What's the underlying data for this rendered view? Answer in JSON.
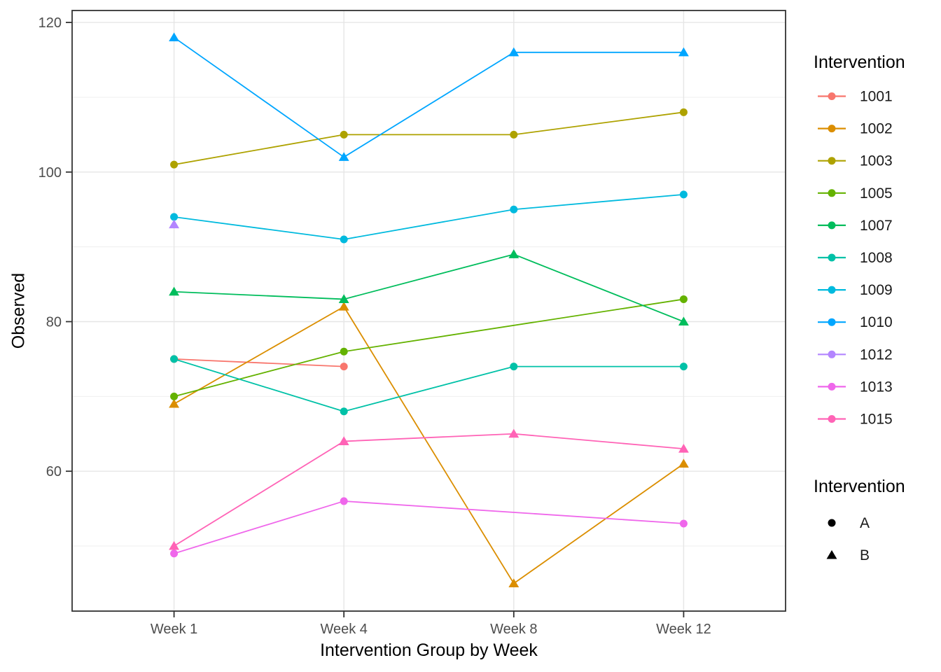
{
  "chart_data": {
    "type": "line",
    "title": "",
    "xlabel": "Intervention Group by Week",
    "ylabel": "Observed",
    "categories": [
      "Week 1",
      "Week 4",
      "Week 8",
      "Week 12"
    ],
    "ylim": [
      41.3,
      121.6
    ],
    "y_major_ticks": [
      60,
      80,
      100,
      120
    ],
    "y_minor_ticks": [
      50,
      70,
      90,
      110
    ],
    "grid": true,
    "legend_position": "right",
    "legend_color_title": "Intervention",
    "legend_shape_title": "Intervention",
    "shape_legend": [
      {
        "label": "A",
        "shape": "circle"
      },
      {
        "label": "B",
        "shape": "triangle"
      }
    ],
    "series": [
      {
        "name": "1001",
        "color": "#F8766D",
        "shape": "circle",
        "values": [
          75,
          74,
          null,
          null
        ]
      },
      {
        "name": "1002",
        "color": "#DB8E00",
        "shape": "triangle",
        "values": [
          69,
          82,
          45,
          61
        ]
      },
      {
        "name": "1003",
        "color": "#AEA200",
        "shape": "circle",
        "values": [
          101,
          105,
          105,
          108
        ]
      },
      {
        "name": "1005",
        "color": "#64B200",
        "shape": "circle",
        "values": [
          70,
          76,
          null,
          83
        ]
      },
      {
        "name": "1007",
        "color": "#00BD5C",
        "shape": "triangle",
        "values": [
          84,
          83,
          89,
          80
        ]
      },
      {
        "name": "1008",
        "color": "#00C1A7",
        "shape": "circle",
        "values": [
          75,
          68,
          74,
          74
        ]
      },
      {
        "name": "1009",
        "color": "#00BADE",
        "shape": "circle",
        "values": [
          94,
          91,
          95,
          97
        ]
      },
      {
        "name": "1010",
        "color": "#00A6FF",
        "shape": "triangle",
        "values": [
          118,
          102,
          116,
          116
        ]
      },
      {
        "name": "1012",
        "color": "#B385FF",
        "shape": "triangle",
        "values": [
          93,
          null,
          null,
          null
        ]
      },
      {
        "name": "1013",
        "color": "#EF67EB",
        "shape": "circle",
        "values": [
          49,
          56,
          null,
          53
        ]
      },
      {
        "name": "1015",
        "color": "#FF63B6",
        "shape": "triangle",
        "values": [
          50,
          64,
          65,
          63
        ]
      }
    ]
  },
  "colors": {
    "panel_background": "#FFFFFF",
    "panel_border": "#333333",
    "grid_major": "#E6E6E6",
    "grid_minor": "#EFEFEF",
    "tick_mark": "#333333",
    "tick_label": "#4D4D4D",
    "legend_key": "#000000"
  }
}
